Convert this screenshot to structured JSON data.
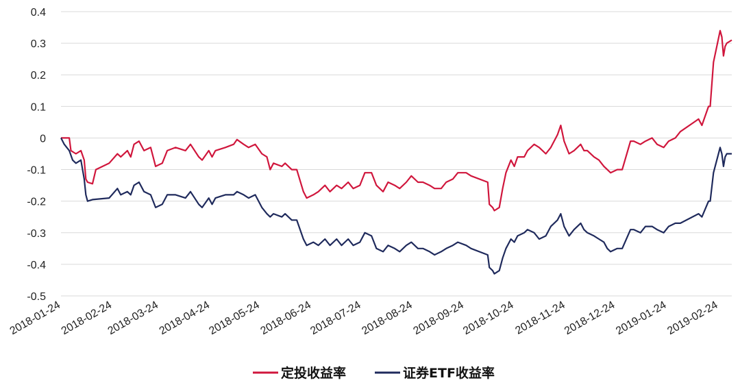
{
  "chart_data": {
    "type": "line",
    "title": "",
    "xlabel": "",
    "ylabel": "",
    "ylim": [
      -0.5,
      0.4
    ],
    "yticks": [
      "0.4",
      "0.3",
      "0.2",
      "0.1",
      "0",
      "-0.1",
      "-0.2",
      "-0.3",
      "-0.4",
      "-0.5"
    ],
    "ytick_values": [
      0.4,
      0.3,
      0.2,
      0.1,
      0,
      -0.1,
      -0.2,
      -0.3,
      -0.4,
      -0.5
    ],
    "x_start": "2018-01-24",
    "x_end": "2019-03-04",
    "xticks": [
      "2018-01-24",
      "2018-02-24",
      "2018-03-24",
      "2018-04-24",
      "2018-05-24",
      "2018-06-24",
      "2018-07-24",
      "2018-08-24",
      "2018-09-24",
      "2018-10-24",
      "2018-11-24",
      "2018-12-24",
      "2019-01-24",
      "2019-02-24"
    ],
    "grid": "horizontal",
    "legend_position": "bottom-center",
    "colors": {
      "series1": "#d0163c",
      "series2": "#1f2a5c",
      "grid": "#d9d9d9"
    },
    "series": [
      {
        "name": "定投收益率",
        "points": [
          [
            "2018-01-24",
            0.0
          ],
          [
            "2018-01-29",
            0.0
          ],
          [
            "2018-01-30",
            -0.04
          ],
          [
            "2018-02-02",
            -0.05
          ],
          [
            "2018-02-05",
            -0.04
          ],
          [
            "2018-02-07",
            -0.07
          ],
          [
            "2018-02-08",
            -0.13
          ],
          [
            "2018-02-09",
            -0.14
          ],
          [
            "2018-02-12",
            -0.145
          ],
          [
            "2018-02-14",
            -0.1
          ],
          [
            "2018-02-22",
            -0.08
          ],
          [
            "2018-02-27",
            -0.05
          ],
          [
            "2018-03-01",
            -0.06
          ],
          [
            "2018-03-05",
            -0.04
          ],
          [
            "2018-03-07",
            -0.06
          ],
          [
            "2018-03-09",
            -0.02
          ],
          [
            "2018-03-12",
            -0.01
          ],
          [
            "2018-03-15",
            -0.04
          ],
          [
            "2018-03-19",
            -0.03
          ],
          [
            "2018-03-22",
            -0.09
          ],
          [
            "2018-03-26",
            -0.08
          ],
          [
            "2018-03-29",
            -0.04
          ],
          [
            "2018-04-03",
            -0.03
          ],
          [
            "2018-04-09",
            -0.04
          ],
          [
            "2018-04-12",
            -0.02
          ],
          [
            "2018-04-17",
            -0.06
          ],
          [
            "2018-04-19",
            -0.07
          ],
          [
            "2018-04-23",
            -0.04
          ],
          [
            "2018-04-25",
            -0.06
          ],
          [
            "2018-04-27",
            -0.04
          ],
          [
            "2018-05-03",
            -0.03
          ],
          [
            "2018-05-08",
            -0.02
          ],
          [
            "2018-05-10",
            -0.005
          ],
          [
            "2018-05-14",
            -0.02
          ],
          [
            "2018-05-17",
            -0.03
          ],
          [
            "2018-05-21",
            -0.02
          ],
          [
            "2018-05-25",
            -0.05
          ],
          [
            "2018-05-28",
            -0.06
          ],
          [
            "2018-05-30",
            -0.1
          ],
          [
            "2018-06-01",
            -0.08
          ],
          [
            "2018-06-06",
            -0.09
          ],
          [
            "2018-06-08",
            -0.08
          ],
          [
            "2018-06-12",
            -0.1
          ],
          [
            "2018-06-15",
            -0.1
          ],
          [
            "2018-06-19",
            -0.17
          ],
          [
            "2018-06-21",
            -0.19
          ],
          [
            "2018-06-25",
            -0.18
          ],
          [
            "2018-06-28",
            -0.17
          ],
          [
            "2018-07-02",
            -0.15
          ],
          [
            "2018-07-05",
            -0.17
          ],
          [
            "2018-07-09",
            -0.15
          ],
          [
            "2018-07-12",
            -0.16
          ],
          [
            "2018-07-16",
            -0.14
          ],
          [
            "2018-07-19",
            -0.16
          ],
          [
            "2018-07-23",
            -0.15
          ],
          [
            "2018-07-26",
            -0.11
          ],
          [
            "2018-07-30",
            -0.11
          ],
          [
            "2018-08-02",
            -0.15
          ],
          [
            "2018-08-06",
            -0.17
          ],
          [
            "2018-08-09",
            -0.14
          ],
          [
            "2018-08-13",
            -0.15
          ],
          [
            "2018-08-16",
            -0.16
          ],
          [
            "2018-08-20",
            -0.14
          ],
          [
            "2018-08-23",
            -0.12
          ],
          [
            "2018-08-27",
            -0.14
          ],
          [
            "2018-08-30",
            -0.14
          ],
          [
            "2018-09-03",
            -0.15
          ],
          [
            "2018-09-06",
            -0.16
          ],
          [
            "2018-09-10",
            -0.16
          ],
          [
            "2018-09-13",
            -0.14
          ],
          [
            "2018-09-17",
            -0.13
          ],
          [
            "2018-09-20",
            -0.11
          ],
          [
            "2018-09-25",
            -0.11
          ],
          [
            "2018-09-28",
            -0.12
          ],
          [
            "2018-10-08",
            -0.14
          ],
          [
            "2018-10-09",
            -0.21
          ],
          [
            "2018-10-11",
            -0.22
          ],
          [
            "2018-10-12",
            -0.23
          ],
          [
            "2018-10-15",
            -0.22
          ],
          [
            "2018-10-17",
            -0.16
          ],
          [
            "2018-10-19",
            -0.11
          ],
          [
            "2018-10-22",
            -0.07
          ],
          [
            "2018-10-24",
            -0.09
          ],
          [
            "2018-10-26",
            -0.06
          ],
          [
            "2018-10-30",
            -0.06
          ],
          [
            "2018-11-01",
            -0.04
          ],
          [
            "2018-11-05",
            -0.02
          ],
          [
            "2018-11-08",
            -0.03
          ],
          [
            "2018-11-12",
            -0.05
          ],
          [
            "2018-11-15",
            -0.03
          ],
          [
            "2018-11-19",
            0.01
          ],
          [
            "2018-11-21",
            0.04
          ],
          [
            "2018-11-23",
            -0.01
          ],
          [
            "2018-11-26",
            -0.05
          ],
          [
            "2018-11-29",
            -0.04
          ],
          [
            "2018-12-03",
            -0.02
          ],
          [
            "2018-12-05",
            -0.04
          ],
          [
            "2018-12-07",
            -0.04
          ],
          [
            "2018-12-11",
            -0.06
          ],
          [
            "2018-12-14",
            -0.07
          ],
          [
            "2018-12-17",
            -0.09
          ],
          [
            "2018-12-19",
            -0.1
          ],
          [
            "2018-12-21",
            -0.11
          ],
          [
            "2018-12-25",
            -0.1
          ],
          [
            "2018-12-28",
            -0.1
          ],
          [
            "2019-01-02",
            -0.01
          ],
          [
            "2019-01-04",
            -0.01
          ],
          [
            "2019-01-08",
            -0.02
          ],
          [
            "2019-01-11",
            -0.01
          ],
          [
            "2019-01-15",
            0.0
          ],
          [
            "2019-01-18",
            -0.02
          ],
          [
            "2019-01-22",
            -0.03
          ],
          [
            "2019-01-25",
            -0.01
          ],
          [
            "2019-01-29",
            0.0
          ],
          [
            "2019-02-01",
            0.02
          ],
          [
            "2019-02-12",
            0.06
          ],
          [
            "2019-02-14",
            0.04
          ],
          [
            "2019-02-18",
            0.1
          ],
          [
            "2019-02-19",
            0.1
          ],
          [
            "2019-02-21",
            0.24
          ],
          [
            "2019-02-25",
            0.34
          ],
          [
            "2019-02-26",
            0.32
          ],
          [
            "2019-02-27",
            0.26
          ],
          [
            "2019-02-28",
            0.29
          ],
          [
            "2019-03-01",
            0.3
          ],
          [
            "2019-03-04",
            0.31
          ]
        ]
      },
      {
        "name": "证券ETF收益率",
        "points": [
          [
            "2018-01-24",
            0.0
          ],
          [
            "2018-01-26",
            -0.02
          ],
          [
            "2018-01-29",
            -0.04
          ],
          [
            "2018-01-31",
            -0.07
          ],
          [
            "2018-02-02",
            -0.08
          ],
          [
            "2018-02-05",
            -0.07
          ],
          [
            "2018-02-07",
            -0.13
          ],
          [
            "2018-02-08",
            -0.18
          ],
          [
            "2018-02-09",
            -0.2
          ],
          [
            "2018-02-12",
            -0.195
          ],
          [
            "2018-02-22",
            -0.19
          ],
          [
            "2018-02-27",
            -0.16
          ],
          [
            "2018-03-01",
            -0.18
          ],
          [
            "2018-03-05",
            -0.17
          ],
          [
            "2018-03-07",
            -0.18
          ],
          [
            "2018-03-09",
            -0.15
          ],
          [
            "2018-03-12",
            -0.14
          ],
          [
            "2018-03-15",
            -0.17
          ],
          [
            "2018-03-19",
            -0.18
          ],
          [
            "2018-03-22",
            -0.22
          ],
          [
            "2018-03-26",
            -0.21
          ],
          [
            "2018-03-29",
            -0.18
          ],
          [
            "2018-04-03",
            -0.18
          ],
          [
            "2018-04-09",
            -0.19
          ],
          [
            "2018-04-12",
            -0.17
          ],
          [
            "2018-04-17",
            -0.21
          ],
          [
            "2018-04-19",
            -0.22
          ],
          [
            "2018-04-23",
            -0.19
          ],
          [
            "2018-04-25",
            -0.21
          ],
          [
            "2018-04-27",
            -0.19
          ],
          [
            "2018-05-03",
            -0.18
          ],
          [
            "2018-05-08",
            -0.18
          ],
          [
            "2018-05-10",
            -0.17
          ],
          [
            "2018-05-14",
            -0.18
          ],
          [
            "2018-05-17",
            -0.19
          ],
          [
            "2018-05-21",
            -0.18
          ],
          [
            "2018-05-25",
            -0.22
          ],
          [
            "2018-05-28",
            -0.24
          ],
          [
            "2018-05-30",
            -0.25
          ],
          [
            "2018-06-01",
            -0.24
          ],
          [
            "2018-06-06",
            -0.25
          ],
          [
            "2018-06-08",
            -0.24
          ],
          [
            "2018-06-12",
            -0.26
          ],
          [
            "2018-06-15",
            -0.26
          ],
          [
            "2018-06-19",
            -0.32
          ],
          [
            "2018-06-21",
            -0.34
          ],
          [
            "2018-06-25",
            -0.33
          ],
          [
            "2018-06-28",
            -0.34
          ],
          [
            "2018-07-02",
            -0.32
          ],
          [
            "2018-07-05",
            -0.34
          ],
          [
            "2018-07-09",
            -0.32
          ],
          [
            "2018-07-12",
            -0.34
          ],
          [
            "2018-07-16",
            -0.32
          ],
          [
            "2018-07-19",
            -0.34
          ],
          [
            "2018-07-23",
            -0.33
          ],
          [
            "2018-07-26",
            -0.3
          ],
          [
            "2018-07-30",
            -0.31
          ],
          [
            "2018-08-02",
            -0.35
          ],
          [
            "2018-08-06",
            -0.36
          ],
          [
            "2018-08-09",
            -0.34
          ],
          [
            "2018-08-13",
            -0.35
          ],
          [
            "2018-08-16",
            -0.36
          ],
          [
            "2018-08-20",
            -0.34
          ],
          [
            "2018-08-23",
            -0.33
          ],
          [
            "2018-08-27",
            -0.35
          ],
          [
            "2018-08-30",
            -0.35
          ],
          [
            "2018-09-03",
            -0.36
          ],
          [
            "2018-09-06",
            -0.37
          ],
          [
            "2018-09-10",
            -0.36
          ],
          [
            "2018-09-13",
            -0.35
          ],
          [
            "2018-09-17",
            -0.34
          ],
          [
            "2018-09-20",
            -0.33
          ],
          [
            "2018-09-25",
            -0.34
          ],
          [
            "2018-09-28",
            -0.35
          ],
          [
            "2018-10-08",
            -0.37
          ],
          [
            "2018-10-09",
            -0.41
          ],
          [
            "2018-10-11",
            -0.42
          ],
          [
            "2018-10-12",
            -0.43
          ],
          [
            "2018-10-15",
            -0.42
          ],
          [
            "2018-10-17",
            -0.38
          ],
          [
            "2018-10-19",
            -0.35
          ],
          [
            "2018-10-22",
            -0.32
          ],
          [
            "2018-10-24",
            -0.33
          ],
          [
            "2018-10-26",
            -0.31
          ],
          [
            "2018-10-30",
            -0.3
          ],
          [
            "2018-11-01",
            -0.29
          ],
          [
            "2018-11-05",
            -0.3
          ],
          [
            "2018-11-08",
            -0.32
          ],
          [
            "2018-11-12",
            -0.31
          ],
          [
            "2018-11-15",
            -0.28
          ],
          [
            "2018-11-19",
            -0.26
          ],
          [
            "2018-11-21",
            -0.24
          ],
          [
            "2018-11-23",
            -0.28
          ],
          [
            "2018-11-26",
            -0.31
          ],
          [
            "2018-11-29",
            -0.29
          ],
          [
            "2018-12-03",
            -0.27
          ],
          [
            "2018-12-05",
            -0.29
          ],
          [
            "2018-12-07",
            -0.3
          ],
          [
            "2018-12-11",
            -0.31
          ],
          [
            "2018-12-14",
            -0.32
          ],
          [
            "2018-12-17",
            -0.33
          ],
          [
            "2018-12-19",
            -0.35
          ],
          [
            "2018-12-21",
            -0.36
          ],
          [
            "2018-12-25",
            -0.35
          ],
          [
            "2018-12-28",
            -0.35
          ],
          [
            "2019-01-02",
            -0.29
          ],
          [
            "2019-01-04",
            -0.29
          ],
          [
            "2019-01-08",
            -0.3
          ],
          [
            "2019-01-11",
            -0.28
          ],
          [
            "2019-01-15",
            -0.28
          ],
          [
            "2019-01-18",
            -0.29
          ],
          [
            "2019-01-22",
            -0.3
          ],
          [
            "2019-01-25",
            -0.28
          ],
          [
            "2019-01-29",
            -0.27
          ],
          [
            "2019-02-01",
            -0.27
          ],
          [
            "2019-02-12",
            -0.24
          ],
          [
            "2019-02-14",
            -0.25
          ],
          [
            "2019-02-18",
            -0.2
          ],
          [
            "2019-02-19",
            -0.2
          ],
          [
            "2019-02-21",
            -0.11
          ],
          [
            "2019-02-25",
            -0.03
          ],
          [
            "2019-02-26",
            -0.05
          ],
          [
            "2019-02-27",
            -0.09
          ],
          [
            "2019-02-28",
            -0.06
          ],
          [
            "2019-03-01",
            -0.05
          ],
          [
            "2019-03-04",
            -0.05
          ]
        ]
      }
    ]
  }
}
